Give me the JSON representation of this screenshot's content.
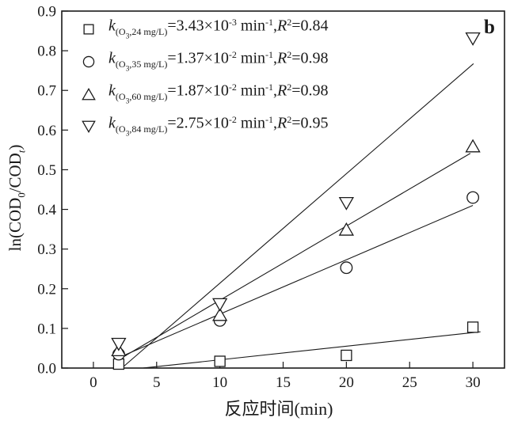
{
  "figure": {
    "panel_label": "b",
    "background": "#ffffff",
    "ink_color": "#1a1a1a"
  },
  "chart_data": {
    "type": "scatter",
    "title": "",
    "panel_label": "b",
    "xlabel": "反应时间(min)",
    "ylabel": "ln(COD0/CODt)",
    "ylabel_segments": [
      {
        "t": "ln(COD",
        "s": ""
      },
      {
        "t": "0",
        "s": "sub"
      },
      {
        "t": "/COD",
        "s": ""
      },
      {
        "t": "t",
        "s": "sub i"
      },
      {
        "t": ")",
        "s": ""
      }
    ],
    "xlim": [
      -2.5,
      32.5
    ],
    "ylim": [
      0,
      0.9
    ],
    "grid": false,
    "legend_position": "upper-left",
    "marker_fill": "#ffffff",
    "xticks": {
      "values": [
        0,
        5,
        10,
        15,
        20,
        25,
        30
      ],
      "labels": [
        "0",
        "5",
        "10",
        "15",
        "20",
        "25",
        "30"
      ]
    },
    "yticks": {
      "values": [
        0.0,
        0.1,
        0.2,
        0.3,
        0.4,
        0.5,
        0.6,
        0.7,
        0.8,
        0.9
      ],
      "labels": [
        "0.0",
        "0.1",
        "0.2",
        "0.3",
        "0.4",
        "0.5",
        "0.6",
        "0.7",
        "0.8",
        "0.9"
      ]
    },
    "series": [
      {
        "name": "O3 24 mg/L",
        "ozone_mg_L": 24,
        "marker": "square",
        "x": [
          2,
          10,
          20,
          30
        ],
        "y": [
          0.01,
          0.017,
          0.032,
          0.103
        ],
        "k_min_inverse": 0.00343,
        "r_squared": 0.84,
        "fit": {
          "slope": 0.00343,
          "intercept": -0.0135,
          "x_start": 3.95,
          "x_end": 30.6
        },
        "legend_segments": [
          {
            "t": "k",
            "s": "i"
          },
          {
            "t": "(O",
            "s": "sub"
          },
          {
            "t": "3",
            "s": "subsub"
          },
          {
            "t": ",24 mg/L)",
            "s": "sub"
          },
          {
            "t": "=3.43×10",
            "s": ""
          },
          {
            "t": "-3",
            "s": "sup"
          },
          {
            "t": " min",
            "s": ""
          },
          {
            "t": "-1",
            "s": "sup"
          },
          {
            "t": ",",
            "s": ""
          },
          {
            "t": "R",
            "s": "i"
          },
          {
            "t": "2",
            "s": "sup"
          },
          {
            "t": "=0.84",
            "s": ""
          }
        ]
      },
      {
        "name": "O3 35 mg/L",
        "ozone_mg_L": 35,
        "marker": "circle",
        "x": [
          2,
          10,
          20,
          30
        ],
        "y": [
          0.035,
          0.12,
          0.253,
          0.43
        ],
        "k_min_inverse": 0.0137,
        "r_squared": 0.98,
        "fit": {
          "slope": 0.0137,
          "intercept": -0.001,
          "x_start": 1.9,
          "x_end": 30.0
        },
        "legend_segments": [
          {
            "t": "k",
            "s": "i"
          },
          {
            "t": "(O",
            "s": "sub"
          },
          {
            "t": "3",
            "s": "subsub"
          },
          {
            "t": ",35 mg/L)",
            "s": "sub"
          },
          {
            "t": "=1.37×10",
            "s": ""
          },
          {
            "t": "-2",
            "s": "sup"
          },
          {
            "t": " min",
            "s": ""
          },
          {
            "t": "-1",
            "s": "sup"
          },
          {
            "t": ",",
            "s": ""
          },
          {
            "t": "R",
            "s": "i"
          },
          {
            "t": "2",
            "s": "sup"
          },
          {
            "t": "=0.98",
            "s": ""
          }
        ]
      },
      {
        "name": "O3 60 mg/L",
        "ozone_mg_L": 60,
        "marker": "triangle-up",
        "x": [
          2,
          10,
          20,
          30
        ],
        "y": [
          0.046,
          0.135,
          0.35,
          0.56
        ],
        "k_min_inverse": 0.0187,
        "r_squared": 0.98,
        "fit": {
          "slope": 0.0187,
          "intercept": -0.016,
          "x_start": 1.9,
          "x_end": 29.8
        },
        "legend_segments": [
          {
            "t": "k",
            "s": "i"
          },
          {
            "t": "(O",
            "s": "sub"
          },
          {
            "t": "3",
            "s": "subsub"
          },
          {
            "t": ",60 mg/L)",
            "s": "sub"
          },
          {
            "t": "=1.87×10",
            "s": ""
          },
          {
            "t": "-2",
            "s": "sup"
          },
          {
            "t": " min",
            "s": ""
          },
          {
            "t": "-1",
            "s": "sup"
          },
          {
            "t": ",",
            "s": ""
          },
          {
            "t": "R",
            "s": "i"
          },
          {
            "t": "2",
            "s": "sup"
          },
          {
            "t": "=0.98",
            "s": ""
          }
        ]
      },
      {
        "name": "O3 84 mg/L",
        "ozone_mg_L": 84,
        "marker": "triangle-down",
        "x": [
          2,
          10,
          20,
          30
        ],
        "y": [
          0.06,
          0.16,
          0.415,
          0.83
        ],
        "k_min_inverse": 0.0275,
        "r_squared": 0.95,
        "fit": {
          "slope": 0.0276,
          "intercept": -0.062,
          "x_start": 2.3,
          "x_end": 30.05
        },
        "legend_segments": [
          {
            "t": "k",
            "s": "i"
          },
          {
            "t": "(O",
            "s": "sub"
          },
          {
            "t": "3",
            "s": "subsub"
          },
          {
            "t": ",84 mg/L)",
            "s": "sub"
          },
          {
            "t": "=2.75×10",
            "s": ""
          },
          {
            "t": "-2",
            "s": "sup"
          },
          {
            "t": " min",
            "s": ""
          },
          {
            "t": "-1",
            "s": "sup"
          },
          {
            "t": ",",
            "s": ""
          },
          {
            "t": "R",
            "s": "i"
          },
          {
            "t": "2",
            "s": "sup"
          },
          {
            "t": "=0.95",
            "s": ""
          }
        ]
      }
    ]
  }
}
